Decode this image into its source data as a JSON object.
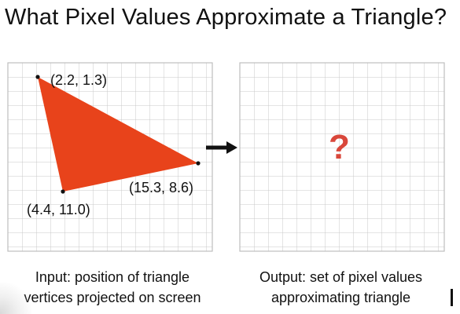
{
  "title": "What Pixel Values Approximate a Triangle?",
  "input_panel": {
    "vertices": [
      {
        "label": "(2.2, 1.3)"
      },
      {
        "label": "(15.3, 8.6)"
      },
      {
        "label": "(4.4, 11.0)"
      }
    ],
    "caption_line1": "Input: position of triangle",
    "caption_line2": "vertices projected on screen"
  },
  "output_panel": {
    "symbol": "?",
    "caption_line1": "Output: set of pixel values",
    "caption_line2": "approximating triangle"
  },
  "colors": {
    "triangle": "#e8431b",
    "question_mark": "#d9473b",
    "grid": "#c8c8c8",
    "arrow": "#111111"
  },
  "icons": {
    "arrow": "arrow-right-icon",
    "question": "question-mark-icon"
  }
}
